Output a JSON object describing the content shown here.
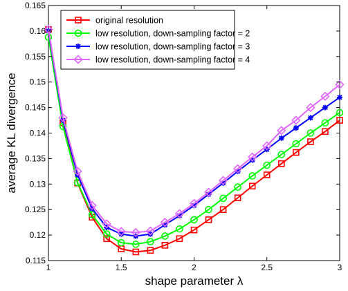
{
  "chart_data": {
    "type": "line",
    "title": "",
    "xlabel": "shape parameter λ",
    "ylabel": "average KL divergence",
    "xlim": [
      1,
      3
    ],
    "ylim": [
      0.115,
      0.165
    ],
    "xticks": [
      1,
      1.5,
      2,
      2.5,
      3
    ],
    "yticks": [
      0.115,
      0.12,
      0.125,
      0.13,
      0.135,
      0.14,
      0.145,
      0.15,
      0.155,
      0.16,
      0.165
    ],
    "xtick_labels": [
      "1",
      "1.5",
      "2",
      "2.5",
      "3"
    ],
    "ytick_labels": [
      "0.115",
      "0.12",
      "0.125",
      "0.13",
      "0.135",
      "0.14",
      "0.145",
      "0.15",
      "0.155",
      "0.16",
      "0.165"
    ],
    "grid": false,
    "legend_position": "top-left",
    "x": [
      1.0,
      1.1,
      1.2,
      1.3,
      1.4,
      1.5,
      1.6,
      1.7,
      1.8,
      1.9,
      2.0,
      2.1,
      2.2,
      2.3,
      2.4,
      2.5,
      2.6,
      2.7,
      2.8,
      2.9,
      3.0
    ],
    "series": [
      {
        "name": "original resolution",
        "color": "#ff0000",
        "marker": "square",
        "values": [
          0.1603,
          0.142,
          0.1302,
          0.1235,
          0.1193,
          0.1173,
          0.1167,
          0.117,
          0.118,
          0.1193,
          0.121,
          0.123,
          0.125,
          0.1273,
          0.1296,
          0.1318,
          0.134,
          0.1362,
          0.1383,
          0.1403,
          0.1425
        ]
      },
      {
        "name": "low resolution, down-sampling factor = 2",
        "color": "#00ff00",
        "marker": "circle",
        "values": [
          0.1588,
          0.1413,
          0.1303,
          0.124,
          0.1202,
          0.1185,
          0.1182,
          0.1187,
          0.1198,
          0.1212,
          0.123,
          0.125,
          0.1272,
          0.1294,
          0.1316,
          0.1337,
          0.1358,
          0.1379,
          0.14,
          0.142,
          0.144
        ]
      },
      {
        "name": "low resolution, down-sampling factor = 3",
        "color": "#0000ff",
        "marker": "asterisk",
        "values": [
          0.16,
          0.1425,
          0.1318,
          0.1252,
          0.1215,
          0.1202,
          0.1198,
          0.1202,
          0.122,
          0.1238,
          0.1258,
          0.128,
          0.1302,
          0.1325,
          0.1347,
          0.1368,
          0.139,
          0.141,
          0.143,
          0.145,
          0.147
        ]
      },
      {
        "name": "low resolution, down-sampling factor = 4",
        "color": "#e066ff",
        "marker": "diamond",
        "values": [
          0.1603,
          0.143,
          0.1325,
          0.1258,
          0.1222,
          0.1207,
          0.1205,
          0.1208,
          0.1225,
          0.1242,
          0.1262,
          0.1284,
          0.1307,
          0.133,
          0.1353,
          0.1375,
          0.1405,
          0.1425,
          0.145,
          0.1472,
          0.1495
        ]
      }
    ]
  }
}
